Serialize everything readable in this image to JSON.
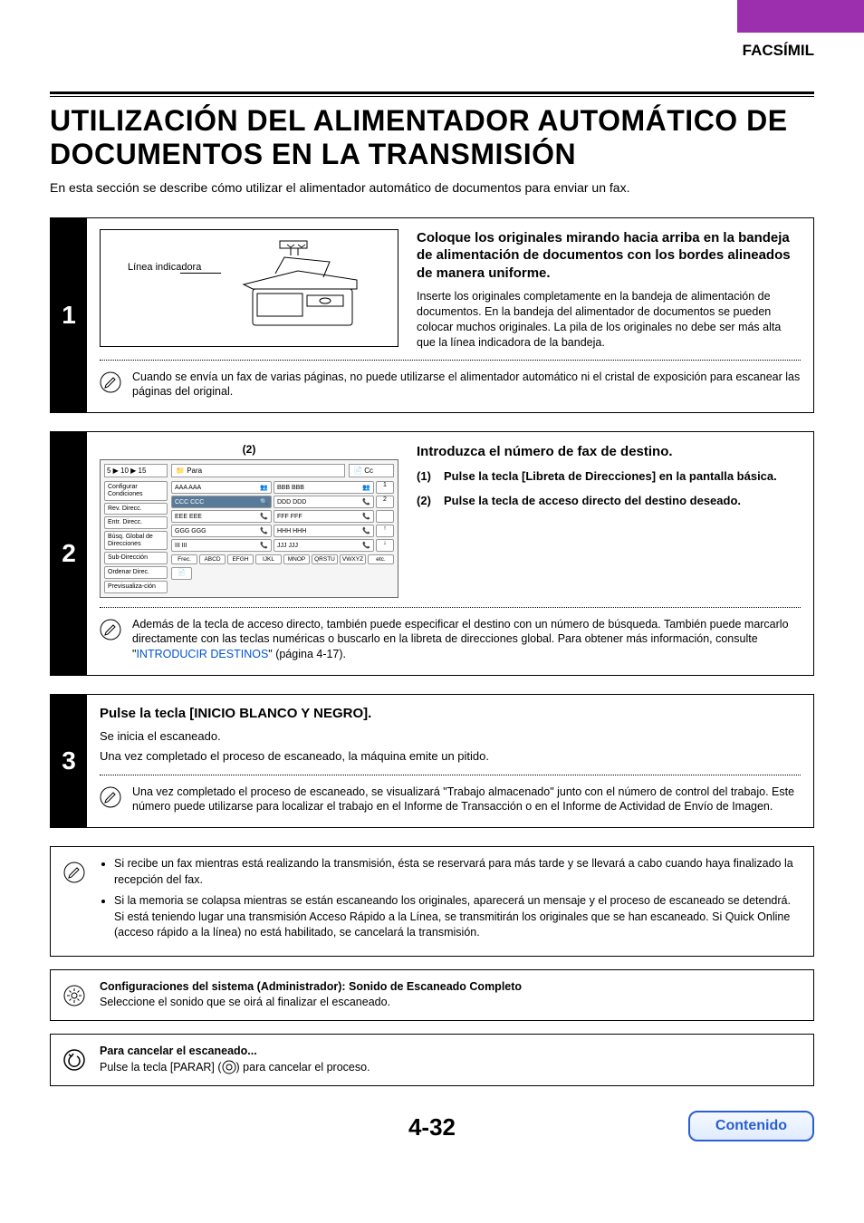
{
  "header": {
    "section": "FACSÍMIL"
  },
  "title": "UTILIZACIÓN DEL ALIMENTADOR AUTOMÁTICO DE DOCUMENTOS EN LA TRANSMISIÓN",
  "intro": "En esta sección se describe cómo utilizar el alimentador automático de documentos para enviar un fax.",
  "step1": {
    "num": "1",
    "illus_label": "Línea indicadora",
    "heading": "Coloque los originales mirando hacia arriba en la bandeja de alimentación de documentos con los bordes alineados de manera uniforme.",
    "body": "Inserte los originales completamente en la bandeja de alimentación de documentos. En la bandeja del alimentador de documentos se pueden colocar muchos originales. La pila de los originales no debe ser más alta que la línea indicadora de la bandeja.",
    "note": "Cuando se envía un fax de varias páginas, no puede utilizarse el alimentador automático ni el cristal de exposición para escanear las páginas del original."
  },
  "step2": {
    "num": "2",
    "annot": "(2)",
    "heading": "Introduzca el número de fax de destino.",
    "sub1": "Pulse la tecla [Libreta de Direcciones] en la pantalla básica.",
    "sub2": "Pulse la tecla de acceso directo del destino deseado.",
    "ui": {
      "toprow_left": "5 ▶ 10 ▶ 15",
      "para": "Para",
      "cc": "Cc",
      "left_buttons": [
        "Configurar Condiciones",
        "Rev. Direcc.",
        "Entr. Direcc.",
        "Búsq. Global de Direcciones",
        "Sub-Dirección",
        "Ordenar Direc.",
        "Previsualiza-ción"
      ],
      "entries": [
        {
          "l": "AAA AAA",
          "li": "group",
          "r": "BBB BBB",
          "ri": "group"
        },
        {
          "l": "CCC CCC",
          "li": "search",
          "r": "DDD DDD",
          "ri": "phone",
          "sel": true
        },
        {
          "l": "EEE EEE",
          "li": "phone",
          "r": "FFF FFF",
          "ri": "phone"
        },
        {
          "l": "GGG GGG",
          "li": "phone",
          "r": "HHH HHH",
          "ri": "phone"
        },
        {
          "l": "III III",
          "li": "phone",
          "r": "JJJ JJJ",
          "ri": "phone"
        }
      ],
      "scroll": [
        "1",
        "2",
        "",
        "↑",
        "↓"
      ],
      "alpha_first": "Frec.",
      "alpha": [
        "ABCD",
        "EFGH",
        "IJKL",
        "MNOP",
        "QRSTU",
        "VWXYZ",
        "etc."
      ]
    },
    "note_pre": "Además de la tecla de acceso directo, también puede especificar el destino con un número de búsqueda. También puede marcarlo directamente con las teclas numéricas o buscarlo en la libreta de direcciones global. Para obtener más información, consulte \"",
    "note_link": "INTRODUCIR DESTINOS",
    "note_post": "\" (página 4-17)."
  },
  "step3": {
    "num": "3",
    "heading": "Pulse la tecla [INICIO BLANCO Y NEGRO].",
    "p1": "Se inicia el escaneado.",
    "p2": "Una vez completado el proceso de escaneado, la máquina emite un pitido.",
    "note": "Una vez completado el proceso de escaneado, se visualizará \"Trabajo almacenado\" junto con el número de control del trabajo. Este número puede utilizarse para localizar el trabajo en el Informe de Transacción o en el Informe de Actividad de Envío de Imagen."
  },
  "bullets": {
    "b1": "Si recibe un fax mientras está realizando la transmisión, ésta se reservará para más tarde y se llevará a cabo cuando haya finalizado la recepción del fax.",
    "b2": "Si la memoria se colapsa mientras se están escaneando los originales, aparecerá un mensaje y el proceso de escaneado se detendrá. Si está teniendo lugar una transmisión Acceso Rápido a la Línea, se transmitirán los originales que se han escaneado. Si Quick Online (acceso rápido a la línea) no está habilitado, se cancelará la transmisión."
  },
  "admin": {
    "title": "Configuraciones del sistema (Administrador): Sonido de Escaneado Completo",
    "body": "Seleccione el sonido que se oirá al finalizar el escaneado."
  },
  "cancel": {
    "title": "Para cancelar el escaneado...",
    "body_pre": "Pulse la tecla [PARAR] (",
    "body_post": ") para cancelar el proceso."
  },
  "page_num": "4-32",
  "contents_btn": "Contenido"
}
